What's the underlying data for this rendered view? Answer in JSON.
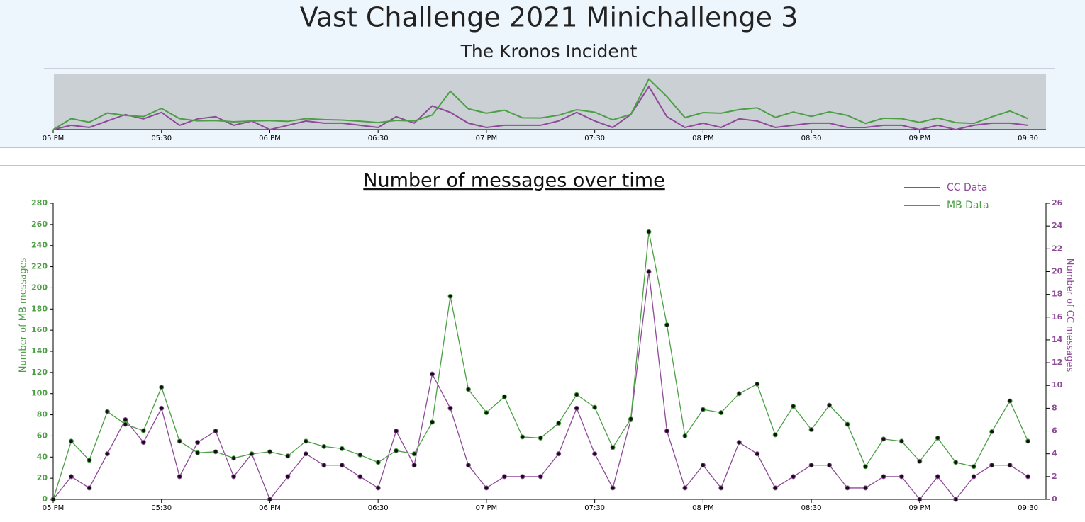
{
  "header": {
    "title": "Vast Challenge 2021 Minichallenge 3",
    "subtitle": "The Kronos Incident"
  },
  "chart_data": {
    "type": "line",
    "title": "Number of messages over time",
    "x": [
      "17:00",
      "17:05",
      "17:10",
      "17:15",
      "17:20",
      "17:25",
      "17:30",
      "17:35",
      "17:40",
      "17:45",
      "17:50",
      "17:55",
      "18:00",
      "18:05",
      "18:10",
      "18:15",
      "18:20",
      "18:25",
      "18:30",
      "18:35",
      "18:40",
      "18:45",
      "18:50",
      "18:55",
      "19:00",
      "19:05",
      "19:10",
      "19:15",
      "19:20",
      "19:25",
      "19:30",
      "19:35",
      "19:40",
      "19:45",
      "19:50",
      "19:55",
      "20:00",
      "20:05",
      "20:10",
      "20:15",
      "20:20",
      "20:25",
      "20:30",
      "20:35",
      "20:40",
      "20:45",
      "20:50",
      "20:55",
      "21:00",
      "21:05",
      "21:10",
      "21:15",
      "21:20",
      "21:25",
      "21:30"
    ],
    "xlim": [
      "17:00",
      "21:35"
    ],
    "xticks": [
      {
        "value": "17:00",
        "label": "05 PM"
      },
      {
        "value": "17:30",
        "label": "05:30"
      },
      {
        "value": "18:00",
        "label": "06 PM"
      },
      {
        "value": "18:30",
        "label": "06:30"
      },
      {
        "value": "19:00",
        "label": "07 PM"
      },
      {
        "value": "19:30",
        "label": "07:30"
      },
      {
        "value": "20:00",
        "label": "08 PM"
      },
      {
        "value": "20:30",
        "label": "08:30"
      },
      {
        "value": "21:00",
        "label": "09 PM"
      },
      {
        "value": "21:30",
        "label": "09:30"
      }
    ],
    "ylabel": "Number of MB messages",
    "y2label": "Number of CC messages",
    "ylim": [
      0,
      280
    ],
    "yticks": [
      0,
      20,
      40,
      60,
      80,
      100,
      120,
      140,
      160,
      180,
      200,
      220,
      240,
      260,
      280
    ],
    "y2lim": [
      0,
      26
    ],
    "y2ticks": [
      0,
      2,
      4,
      6,
      8,
      10,
      12,
      14,
      16,
      18,
      20,
      22,
      24,
      26
    ],
    "legend": "top-right",
    "series": [
      {
        "name": "CC Data",
        "color": "#8e4a98",
        "axis": "y2",
        "values": [
          0,
          2,
          1,
          4,
          7,
          5,
          8,
          2,
          5,
          6,
          2,
          4,
          0,
          2,
          4,
          3,
          3,
          2,
          1,
          6,
          3,
          11,
          8,
          3,
          1,
          2,
          2,
          2,
          4,
          8,
          4,
          1,
          7,
          20,
          6,
          1,
          3,
          1,
          5,
          4,
          1,
          2,
          3,
          3,
          1,
          1,
          2,
          2,
          0,
          2,
          0,
          2,
          3,
          3,
          2
        ]
      },
      {
        "name": "MB Data",
        "color": "#4c9f45",
        "values": [
          0,
          55,
          37,
          83,
          71,
          65,
          106,
          55,
          44,
          45,
          39,
          43,
          45,
          41,
          55,
          50,
          48,
          42,
          35,
          46,
          43,
          73,
          192,
          104,
          82,
          97,
          59,
          58,
          72,
          99,
          87,
          49,
          76,
          253,
          165,
          60,
          85,
          82,
          100,
          109,
          61,
          88,
          66,
          89,
          71,
          31,
          57,
          55,
          36,
          58,
          35,
          31,
          64,
          93,
          55
        ]
      }
    ]
  }
}
